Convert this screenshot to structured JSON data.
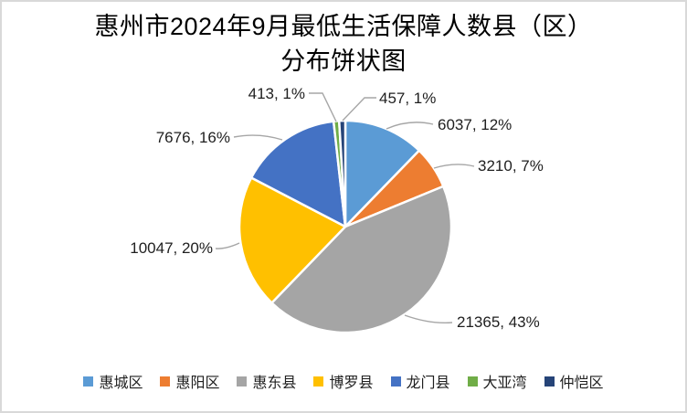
{
  "title": {
    "line1": "惠州市2024年9月最低生活保障人数县（区）",
    "line2": "分布饼状图"
  },
  "chart_data": {
    "type": "pie",
    "title": "惠州市2024年9月最低生活保障人数县（区）分布饼状图",
    "categories": [
      "惠城区",
      "惠阳区",
      "惠东县",
      "博罗县",
      "龙门县",
      "大亚湾",
      "仲恺区"
    ],
    "values": [
      6037,
      3210,
      21365,
      10047,
      7676,
      413,
      457
    ],
    "percents": [
      12,
      7,
      43,
      20,
      16,
      1,
      1
    ],
    "labels": [
      "6037, 12%",
      "3210, 7%",
      "21365, 43%",
      "10047, 20%",
      "7676, 16%",
      "413, 1%",
      "457, 1%"
    ],
    "colors": [
      "#5B9BD5",
      "#ED7D31",
      "#A5A5A5",
      "#FFC000",
      "#4472C4",
      "#70AD47",
      "#264478"
    ],
    "slice_border_color": "#FFFFFF",
    "leader_line_color": "#A6A6A6",
    "start_angle": "12 o'clock, clockwise",
    "legend_position": "bottom"
  }
}
